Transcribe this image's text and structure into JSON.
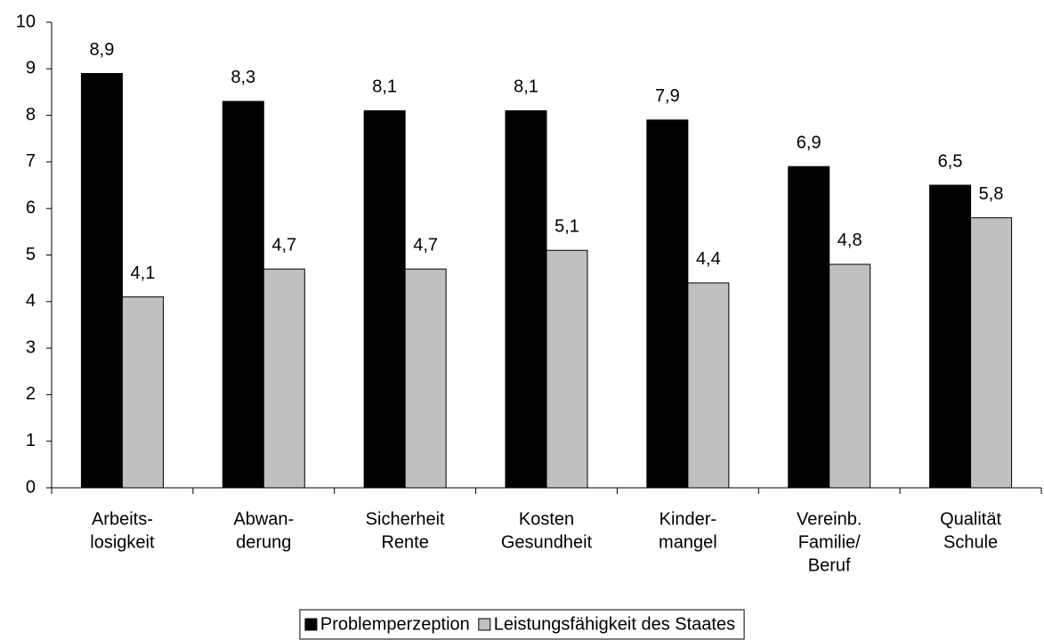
{
  "chart_data": {
    "type": "bar",
    "categories": [
      [
        "Arbeits-",
        "losigkeit"
      ],
      [
        "Abwan-",
        "derung"
      ],
      [
        "Sicherheit",
        "Rente"
      ],
      [
        "Kosten",
        "Gesundheit"
      ],
      [
        "Kinder-",
        "mangel"
      ],
      [
        "Vereinb.",
        "Familie/",
        "Beruf"
      ],
      [
        "Qualität",
        "Schule"
      ]
    ],
    "series": [
      {
        "name": "Problemperzeption",
        "color": "#000000",
        "values": [
          8.9,
          8.3,
          8.1,
          8.1,
          7.9,
          6.9,
          6.5
        ],
        "value_labels": [
          "8,9",
          "8,3",
          "8,1",
          "8,1",
          "7,9",
          "6,9",
          "6,5"
        ]
      },
      {
        "name": "Leistungsfähigkeit des Staates",
        "color": "#c0c0c0",
        "values": [
          4.1,
          4.7,
          4.7,
          5.1,
          4.4,
          4.8,
          5.8
        ],
        "value_labels": [
          "4,1",
          "4,7",
          "4,7",
          "5,1",
          "4,4",
          "4,8",
          "5,8"
        ]
      }
    ],
    "ylim": [
      0,
      10
    ],
    "yticks": [
      0,
      1,
      2,
      3,
      4,
      5,
      6,
      7,
      8,
      9,
      10
    ],
    "legend": "bottom"
  }
}
